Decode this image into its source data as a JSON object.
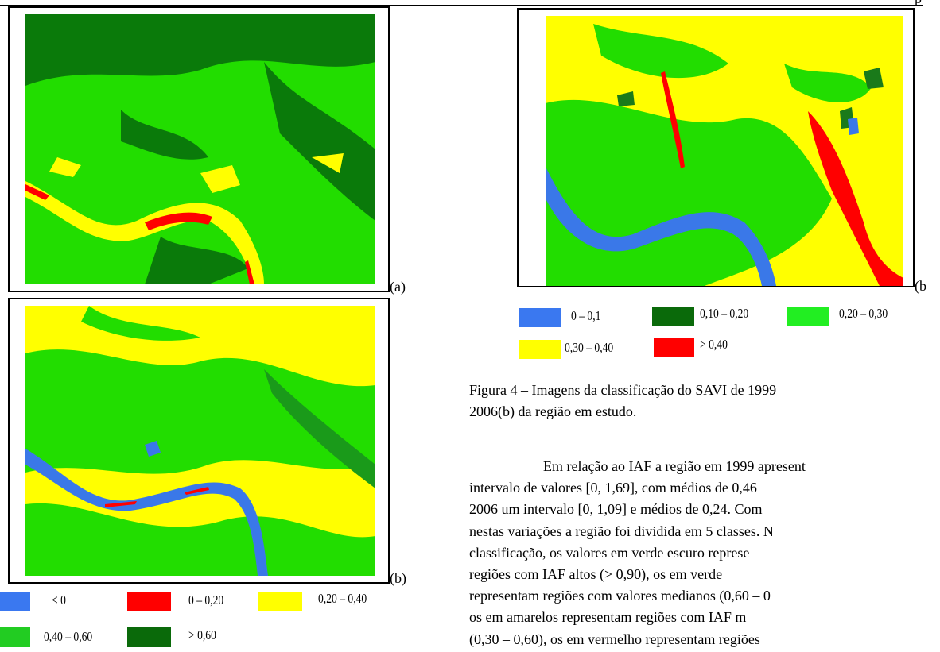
{
  "header": {
    "page_mark": "p"
  },
  "figure_left": {
    "panel_labels": [
      "(a)",
      "(b)"
    ],
    "legend": [
      "< 0",
      "0 – 0,20",
      "0,20 – 0,40",
      "0,40 – 0,60",
      "> 0,60"
    ]
  },
  "figure_right": {
    "panel_label": "(b",
    "legend": [
      "0 – 0,1",
      "0,10 – 0,20",
      "0,20 – 0,30",
      "0,30 – 0,40",
      "> 0,40"
    ]
  },
  "caption": {
    "lines": [
      "Figura 4 – Imagens da classificação do SAVI de 1999",
      "2006(b) da região em estudo."
    ]
  },
  "paragraph": {
    "lines": [
      "Em relação ao IAF a região em 1999 apresent",
      "intervalo de valores [0, 1,69], com médios de 0,46",
      "2006 um intervalo [0, 1,09] e médios de 0,24. Com",
      "nestas variações a região foi dividida em 5 classes. N",
      "classificação, os valores em verde escuro represe",
      "regiões com IAF altos (> 0,90), os em verde",
      "representam regiões com valores medianos (0,60 – 0",
      "os em amarelos representam regiões com IAF m",
      "(0,30 – 0,60), os em vermelho representam regiões"
    ]
  }
}
